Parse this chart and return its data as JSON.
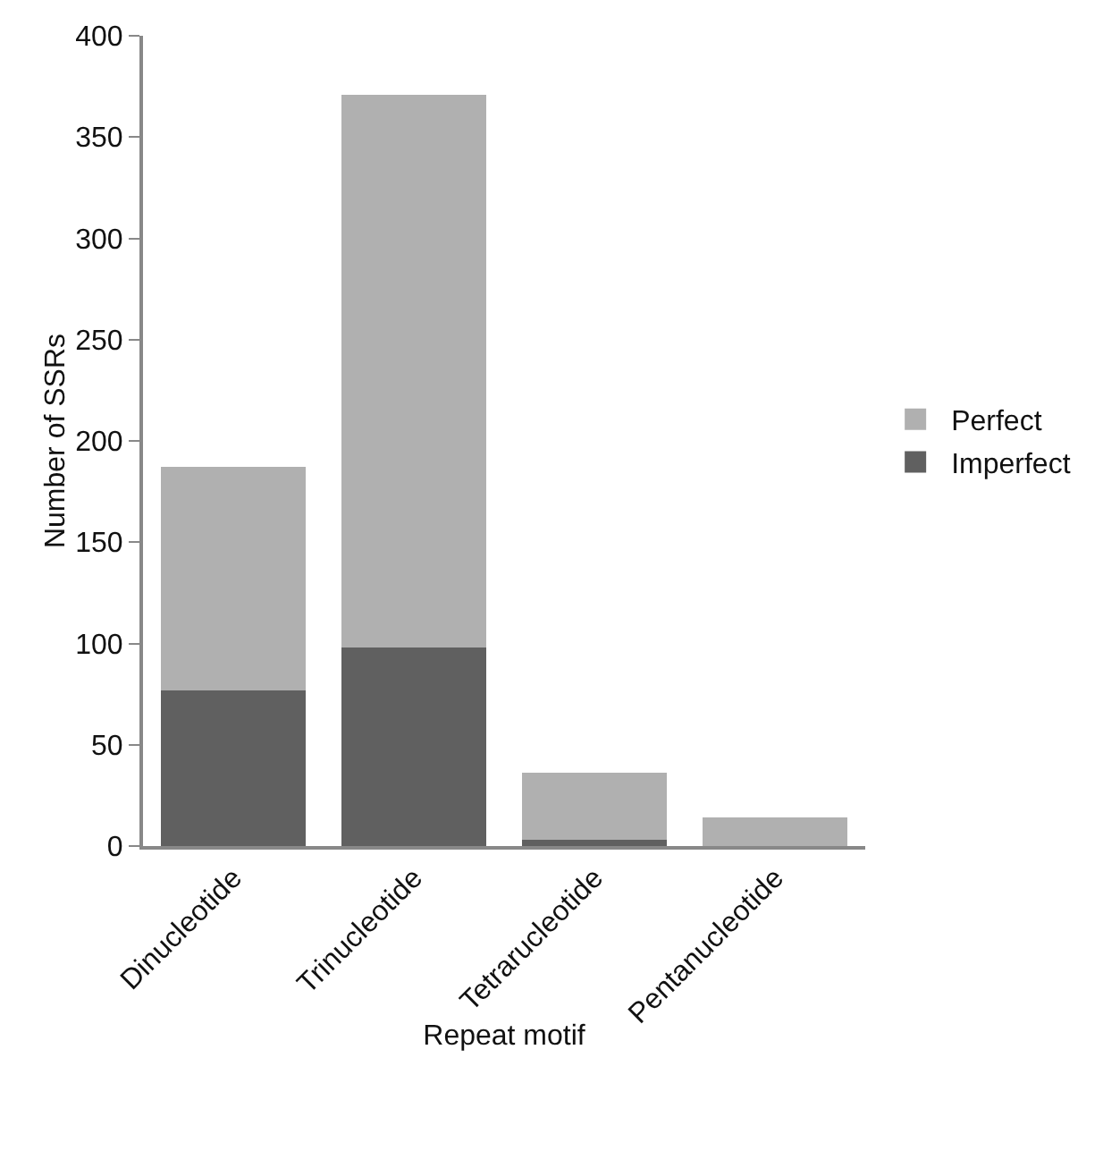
{
  "chart_data": {
    "type": "bar",
    "xlabel": "Repeat motif",
    "ylabel": "Number of SSRs",
    "categories": [
      "Dinucleotide",
      "Trinucleotide",
      "Tetrarucleotide",
      "Pentanucleotide"
    ],
    "stacked": true,
    "series": [
      {
        "name": "Imperfect",
        "color": "#606060",
        "values": [
          77,
          98,
          3,
          0
        ]
      },
      {
        "name": "Perfect",
        "color": "#b0b0b0",
        "values": [
          110,
          273,
          33,
          14
        ]
      }
    ],
    "ylim": [
      0,
      400
    ],
    "yticks": [
      0,
      50,
      100,
      150,
      200,
      250,
      300,
      350,
      400
    ],
    "grid": false,
    "legend": "right"
  }
}
